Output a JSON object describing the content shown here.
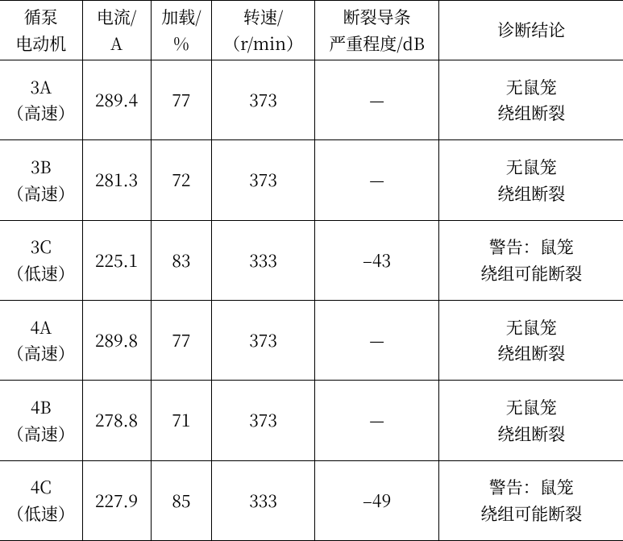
{
  "table": {
    "columns": [
      {
        "line1": "循泵",
        "line2": "电动机"
      },
      {
        "line1": "电流/",
        "line2": "A"
      },
      {
        "line1": "加载/",
        "line2": "%"
      },
      {
        "line1": "转速/",
        "line2": "（r/min）"
      },
      {
        "line1": "断裂导条",
        "line2": "严重程度/dB"
      },
      {
        "line1": "诊断结论",
        "line2": ""
      }
    ],
    "rows": [
      {
        "motor_l1": "3A",
        "motor_l2": "（高速）",
        "current": "289.4",
        "load": "77",
        "speed": "373",
        "severity": "—",
        "diag_l1": "无鼠笼",
        "diag_l2": "绕组断裂"
      },
      {
        "motor_l1": "3B",
        "motor_l2": "（高速）",
        "current": "281.3",
        "load": "72",
        "speed": "373",
        "severity": "—",
        "diag_l1": "无鼠笼",
        "diag_l2": "绕组断裂"
      },
      {
        "motor_l1": "3C",
        "motor_l2": "（低速）",
        "current": "225.1",
        "load": "83",
        "speed": "333",
        "severity": "–43",
        "diag_l1": "警告：鼠笼",
        "diag_l2": "绕组可能断裂"
      },
      {
        "motor_l1": "4A",
        "motor_l2": "（高速）",
        "current": "289.8",
        "load": "77",
        "speed": "373",
        "severity": "—",
        "diag_l1": "无鼠笼",
        "diag_l2": "绕组断裂"
      },
      {
        "motor_l1": "4B",
        "motor_l2": "（高速）",
        "current": "278.8",
        "load": "71",
        "speed": "373",
        "severity": "—",
        "diag_l1": "无鼠笼",
        "diag_l2": "绕组断裂"
      },
      {
        "motor_l1": "4C",
        "motor_l2": "（低速）",
        "current": "227.9",
        "load": "85",
        "speed": "333",
        "severity": "–49",
        "diag_l1": "警告：鼠笼",
        "diag_l2": "绕组可能断裂"
      }
    ],
    "style": {
      "font_family": "SimSun",
      "font_size_pt": 16,
      "border_color": "#000000",
      "background_color": "#ffffff",
      "text_color": "#000000",
      "outer_vertical_borders": false
    }
  }
}
